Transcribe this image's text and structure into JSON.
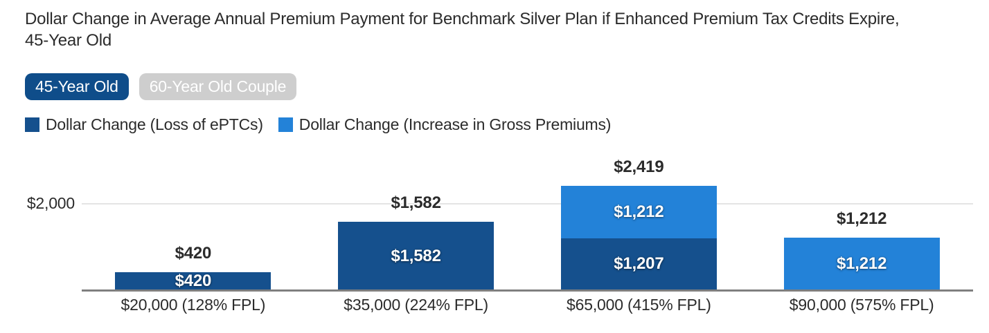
{
  "title": "Dollar Change in Average Annual Premium Payment for Benchmark Silver Plan if Enhanced Premium Tax Credits Expire,\n45-Year Old",
  "toggles": {
    "items": [
      {
        "label": "45-Year Old",
        "active": true
      },
      {
        "label": "60-Year Old Couple",
        "active": false
      }
    ],
    "active_bg": "#0f4d8a",
    "inactive_bg": "#cecece",
    "text_color": "#ffffff"
  },
  "legend": {
    "items": [
      {
        "label": "Dollar Change (Loss of ePTCs)",
        "color": "#15508d"
      },
      {
        "label": "Dollar Change (Increase in Gross Premiums)",
        "color": "#2382d8"
      }
    ]
  },
  "chart_data": {
    "type": "bar",
    "stacked": true,
    "title": "Dollar Change in Average Annual Premium Payment for Benchmark Silver Plan if Enhanced Premium Tax Credits Expire, 45-Year Old",
    "categories": [
      "$20,000 (128% FPL)",
      "$35,000 (224% FPL)",
      "$65,000 (415% FPL)",
      "$90,000 (575% FPL)"
    ],
    "series": [
      {
        "name": "Dollar Change (Loss of ePTCs)",
        "color": "#15508d",
        "values": [
          420,
          1582,
          1207,
          0
        ],
        "value_labels": [
          "$420",
          "$1,582",
          "$1,207",
          ""
        ]
      },
      {
        "name": "Dollar Change (Increase in Gross Premiums)",
        "color": "#2382d8",
        "values": [
          0,
          0,
          1212,
          1212
        ],
        "value_labels": [
          "",
          "",
          "$1,212",
          "$1,212"
        ]
      }
    ],
    "totals": {
      "values": [
        420,
        1582,
        2419,
        1212
      ],
      "labels": [
        "$420",
        "$1,582",
        "$2,419",
        "$1,212"
      ]
    },
    "xlabel": "",
    "ylabel": "",
    "ylim": [
      0,
      3100
    ],
    "y_axis": {
      "ticks": [
        {
          "value": 2000,
          "label": "$2,000"
        }
      ]
    },
    "grid": true,
    "legend_position": "top",
    "colors": {
      "gridline": "#e4e4e4",
      "axis_line": "#7f7f7f",
      "total_label_text": "#2b2b2b",
      "segment_label_text": "#ffffff"
    }
  }
}
